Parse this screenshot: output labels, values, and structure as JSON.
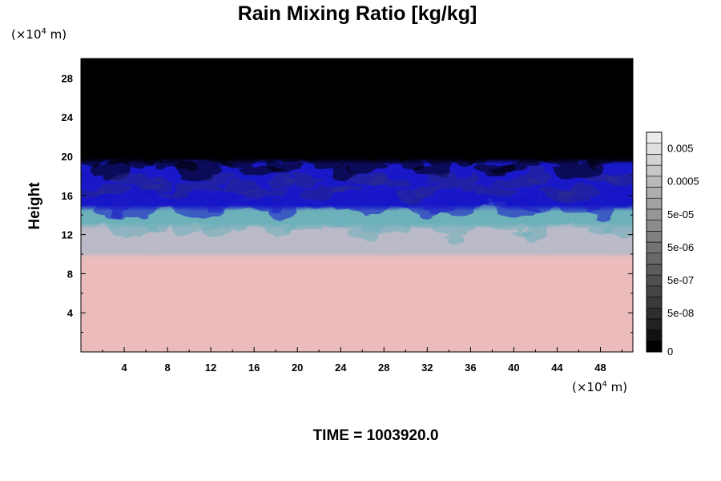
{
  "chart_data": {
    "type": "heatmap",
    "title": "Rain Mixing Ratio [kg/kg]",
    "ylabel": "Height",
    "xlabel": "",
    "x_unit": {
      "prefix": "(×10",
      "exp": "4",
      "suffix": " m)"
    },
    "y_unit": {
      "prefix": "(×10",
      "exp": "4",
      "suffix": " m)"
    },
    "xlim": [
      0,
      51
    ],
    "ylim": [
      0,
      30
    ],
    "x_ticks": [
      4,
      8,
      12,
      16,
      20,
      24,
      28,
      32,
      36,
      40,
      44,
      48
    ],
    "y_ticks": [
      4,
      8,
      12,
      16,
      20,
      24,
      28
    ],
    "colorbar": {
      "levels": [
        "0",
        "5e-08",
        "5e-07",
        "5e-06",
        "5e-05",
        "0.0005",
        "0.005"
      ],
      "colors": [
        "#000000",
        "#111111",
        "#222222",
        "#2e2e2e",
        "#3a3a3a",
        "#454545",
        "#505050",
        "#5c5c5c",
        "#686868",
        "#737373",
        "#7f7f7f",
        "#8b8b8b",
        "#969696",
        "#a2a2a2",
        "#aeaeae",
        "#bababa",
        "#c7c7c7",
        "#d3d3d3",
        "#dfdfdf",
        "#ebebeb"
      ]
    },
    "layers": [
      {
        "name": "lower layer",
        "top": 10.2,
        "color": "#ecbcbc"
      },
      {
        "name": "transition layer",
        "top": 13.2,
        "color": "#b9b9c8"
      },
      {
        "name": "cyan layer",
        "top": 15.0,
        "color": "#6cb0ba"
      },
      {
        "name": "blue layer",
        "top": 19.8,
        "color": "#1818c8"
      },
      {
        "name": "upper layer",
        "top": 30,
        "color": "#000000"
      }
    ]
  },
  "time_label": "TIME = 1003920.0"
}
